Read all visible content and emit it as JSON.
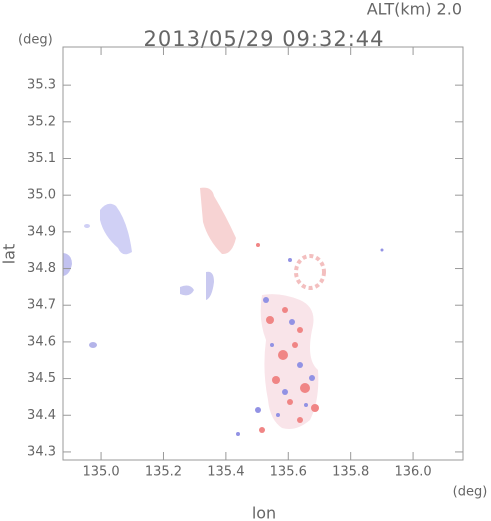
{
  "chart_data": {
    "type": "map",
    "title": "2013/05/29 09:32:44",
    "subtitle": "ALT(km) 2.0",
    "x_label": "lon",
    "y_label": "lat",
    "x_unit": "(deg)",
    "y_unit": "(deg)",
    "xlim": [
      134.878,
      136.16
    ],
    "ylim": [
      34.278,
      35.404
    ],
    "xticks": [
      {
        "value": 135.0,
        "label": "135.0"
      },
      135.2,
      135.4,
      135.6,
      135.8,
      {
        "value": 136.0,
        "label": "136.0"
      }
    ],
    "yticks": [
      34.3,
      34.4,
      34.5,
      34.6,
      34.7,
      34.8,
      34.9,
      {
        "value": 35.0,
        "label": "35.0"
      },
      35.1,
      35.2,
      35.3
    ]
  }
}
